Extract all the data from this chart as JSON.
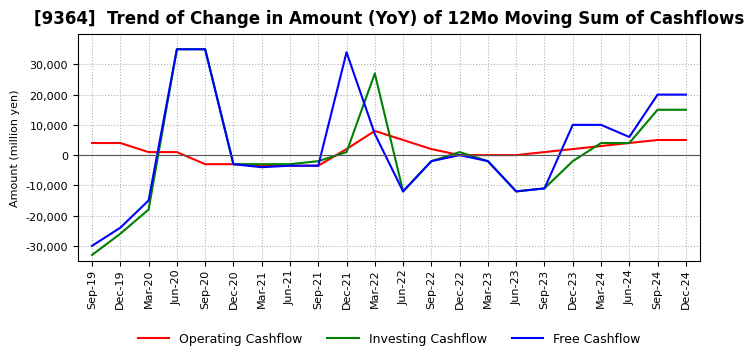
{
  "title": "[9364]  Trend of Change in Amount (YoY) of 12Mo Moving Sum of Cashflows",
  "ylabel": "Amount (million yen)",
  "x_labels": [
    "Sep-19",
    "Dec-19",
    "Mar-20",
    "Jun-20",
    "Sep-20",
    "Dec-20",
    "Mar-21",
    "Jun-21",
    "Sep-21",
    "Dec-21",
    "Mar-22",
    "Jun-22",
    "Sep-22",
    "Dec-22",
    "Mar-23",
    "Jun-23",
    "Sep-23",
    "Dec-23",
    "Mar-24",
    "Jun-24",
    "Sep-24",
    "Dec-24"
  ],
  "operating": [
    4000,
    4000,
    1000,
    1000,
    -3000,
    -3000,
    -3500,
    -3500,
    -3500,
    2000,
    8000,
    5000,
    2000,
    0,
    0,
    0,
    1000,
    2000,
    3000,
    4000,
    5000,
    5000
  ],
  "investing": [
    -33000,
    -26000,
    -18000,
    35000,
    35000,
    -3000,
    -3000,
    -3000,
    -2000,
    1000,
    27000,
    -12000,
    -2000,
    1000,
    -2000,
    -12000,
    -11000,
    -2000,
    4000,
    4000,
    15000,
    15000
  ],
  "free": [
    -30000,
    -24000,
    -15000,
    35000,
    35000,
    -3000,
    -4000,
    -3500,
    -3500,
    34000,
    7000,
    -12000,
    -2000,
    0,
    -2000,
    -12000,
    -11000,
    10000,
    10000,
    6000,
    20000,
    20000
  ],
  "operating_color": "#ff0000",
  "investing_color": "#008000",
  "free_color": "#0000ff",
  "ylim": [
    -35000,
    40000
  ],
  "yticks": [
    -30000,
    -20000,
    -10000,
    0,
    10000,
    20000,
    30000
  ],
  "grid_color": "#b0b0b0",
  "grid_style": "dotted",
  "background_color": "#ffffff",
  "title_fontsize": 12,
  "axis_fontsize": 8,
  "legend_fontsize": 9
}
